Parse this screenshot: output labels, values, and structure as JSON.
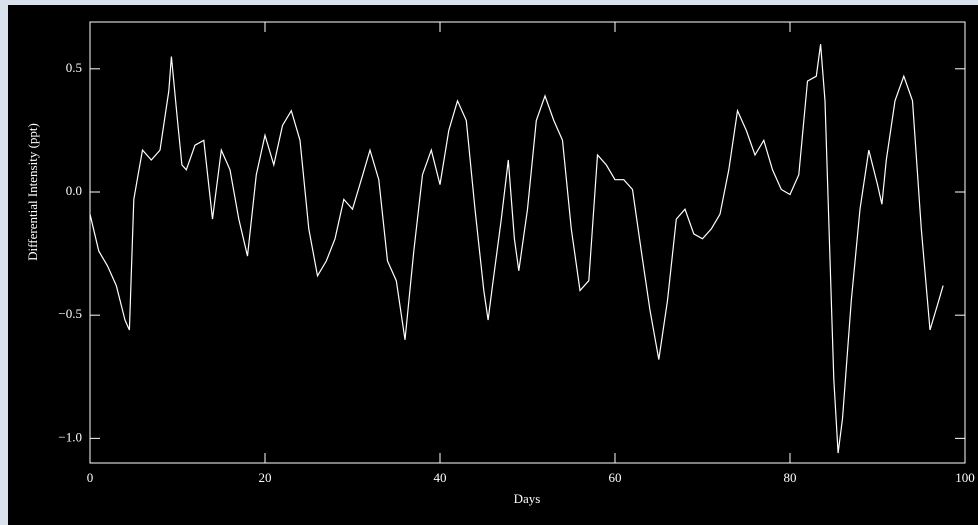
{
  "chart_data": {
    "type": "line",
    "xlabel": "Days",
    "ylabel": "Differential Intensity (ppt)",
    "x": [
      0,
      1,
      2,
      3,
      4,
      4.5,
      5,
      5.5,
      6,
      7,
      8,
      9,
      9.3,
      10,
      10.5,
      11,
      12,
      13,
      14,
      15,
      16,
      17,
      18,
      19,
      20,
      21,
      22,
      23,
      24,
      25,
      26,
      27,
      28,
      29,
      30,
      31,
      32,
      33,
      34,
      35,
      36,
      37,
      38,
      39,
      40,
      41,
      42,
      43,
      44,
      45,
      45.5,
      46,
      47,
      47.8,
      48.5,
      49,
      50,
      51,
      52,
      53,
      54,
      55,
      56,
      57,
      58,
      59,
      60,
      61,
      62,
      63,
      64,
      65,
      66,
      67,
      68,
      69,
      70,
      71,
      72,
      73,
      74,
      75,
      76,
      77,
      78,
      79,
      80,
      81,
      82,
      83,
      83.5,
      84,
      85,
      85.5,
      86,
      87,
      88,
      89,
      90,
      90.5,
      91,
      92,
      93,
      94,
      95,
      96,
      97,
      97.5
    ],
    "values": [
      -0.09,
      -0.24,
      -0.3,
      -0.38,
      -0.52,
      -0.56,
      -0.03,
      0.07,
      0.17,
      0.13,
      0.17,
      0.41,
      0.55,
      0.29,
      0.11,
      0.09,
      0.19,
      0.21,
      -0.11,
      0.17,
      0.09,
      -0.11,
      -0.26,
      0.07,
      0.23,
      0.11,
      0.27,
      0.33,
      0.21,
      -0.15,
      -0.34,
      -0.28,
      -0.19,
      -0.03,
      -0.07,
      0.05,
      0.17,
      0.05,
      -0.28,
      -0.36,
      -0.6,
      -0.24,
      0.07,
      0.17,
      0.03,
      0.25,
      0.37,
      0.29,
      -0.07,
      -0.4,
      -0.52,
      -0.38,
      -0.11,
      0.13,
      -0.19,
      -0.32,
      -0.07,
      0.29,
      0.39,
      0.29,
      0.21,
      -0.15,
      -0.4,
      -0.36,
      0.15,
      0.11,
      0.05,
      0.05,
      0.01,
      -0.24,
      -0.48,
      -0.68,
      -0.44,
      -0.11,
      -0.07,
      -0.17,
      -0.19,
      -0.15,
      -0.09,
      0.09,
      0.33,
      0.25,
      0.15,
      0.21,
      0.09,
      0.01,
      -0.01,
      0.07,
      0.45,
      0.47,
      0.6,
      0.37,
      -0.76,
      -1.06,
      -0.92,
      -0.44,
      -0.07,
      0.17,
      0.03,
      -0.05,
      0.13,
      0.37,
      0.47,
      0.37,
      -0.15,
      -0.56,
      -0.44,
      -0.38
    ],
    "color": "#ffffff",
    "xlim": [
      0,
      100
    ],
    "ylim": [
      -1.1,
      0.69
    ],
    "xticks": [
      0,
      20,
      40,
      60,
      80,
      100
    ],
    "yticks": [
      {
        "value": -1.0,
        "label": "−1.0"
      },
      {
        "value": -0.5,
        "label": "−0.5"
      },
      {
        "value": 0,
        "label": "0.0"
      },
      0.5
    ]
  }
}
